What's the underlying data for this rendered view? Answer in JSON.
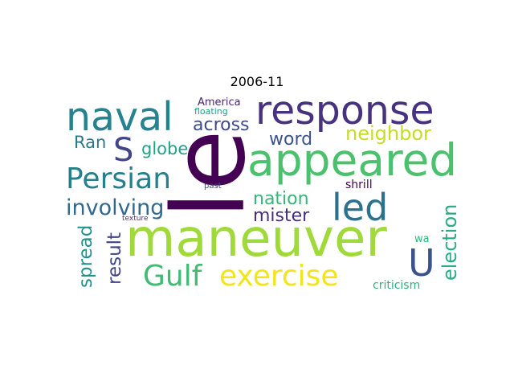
{
  "title": "2006-11",
  "words": [
    {
      "text": "le",
      "color": "#440154"
    },
    {
      "text": "maneuver",
      "color": "#9fda3a"
    },
    {
      "text": "response",
      "color": "#46327e"
    },
    {
      "text": "appeared",
      "color": "#4ac16d"
    },
    {
      "text": "naval",
      "color": "#26828e"
    },
    {
      "text": "Persian",
      "color": "#277f8e"
    },
    {
      "text": "led",
      "color": "#2c728e"
    },
    {
      "text": "exercise",
      "color": "#f2e51d"
    },
    {
      "text": "Gulf",
      "color": "#3fbc73"
    },
    {
      "text": "U",
      "color": "#3b528b"
    },
    {
      "text": "S",
      "color": "#414487"
    },
    {
      "text": "involving",
      "color": "#31688e"
    },
    {
      "text": "election",
      "color": "#26ad81"
    },
    {
      "text": "neighbor",
      "color": "#c2df23"
    },
    {
      "text": "nation",
      "color": "#35b779"
    },
    {
      "text": "mister",
      "color": "#472d7b"
    },
    {
      "text": "across",
      "color": "#3e4a89"
    },
    {
      "text": "word",
      "color": "#3b528b"
    },
    {
      "text": "globe",
      "color": "#20a386"
    },
    {
      "text": "Ran",
      "color": "#2a788e"
    },
    {
      "text": "result",
      "color": "#414487"
    },
    {
      "text": "spread",
      "color": "#21918c"
    },
    {
      "text": "criticism",
      "color": "#2db27d"
    },
    {
      "text": "shrill",
      "color": "#440154"
    },
    {
      "text": "wa",
      "color": "#31b57b"
    },
    {
      "text": "America",
      "color": "#482677"
    },
    {
      "text": "floating",
      "color": "#1fa187"
    },
    {
      "text": "past",
      "color": "#3e4a89"
    },
    {
      "text": "texture",
      "color": "#46327e"
    }
  ]
}
